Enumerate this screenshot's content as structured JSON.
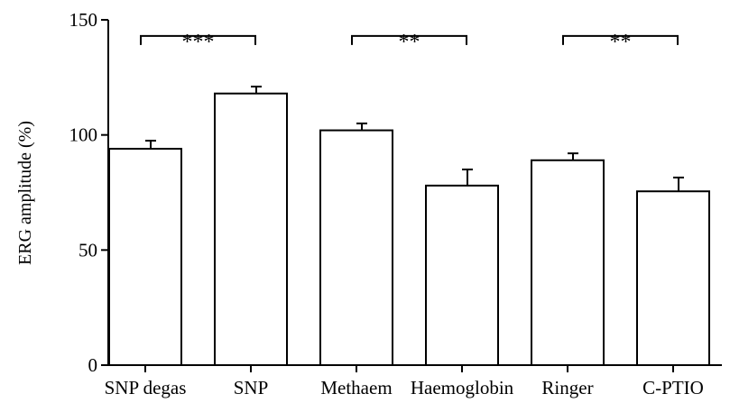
{
  "chart_data": {
    "type": "bar",
    "ylabel": "ERG amplitude (%)",
    "xlabel": "",
    "ylim": [
      0,
      150
    ],
    "yticks": [
      0,
      50,
      100,
      150
    ],
    "grid": false,
    "categories": [
      "SNP degas",
      "SNP",
      "Methaem",
      "Haemoglobin",
      "Ringer",
      "C-PTIO"
    ],
    "values": [
      94,
      118,
      102,
      78,
      89,
      75.5
    ],
    "errors": [
      3.5,
      3,
      3,
      7,
      3,
      6
    ],
    "significance": [
      {
        "from": 0,
        "to": 1,
        "label": "***",
        "y": 143
      },
      {
        "from": 2,
        "to": 3,
        "label": "**",
        "y": 143
      },
      {
        "from": 4,
        "to": 5,
        "label": "**",
        "y": 143
      }
    ],
    "colors": {
      "bar_fill": "#ffffff",
      "stroke": "#000000"
    }
  }
}
